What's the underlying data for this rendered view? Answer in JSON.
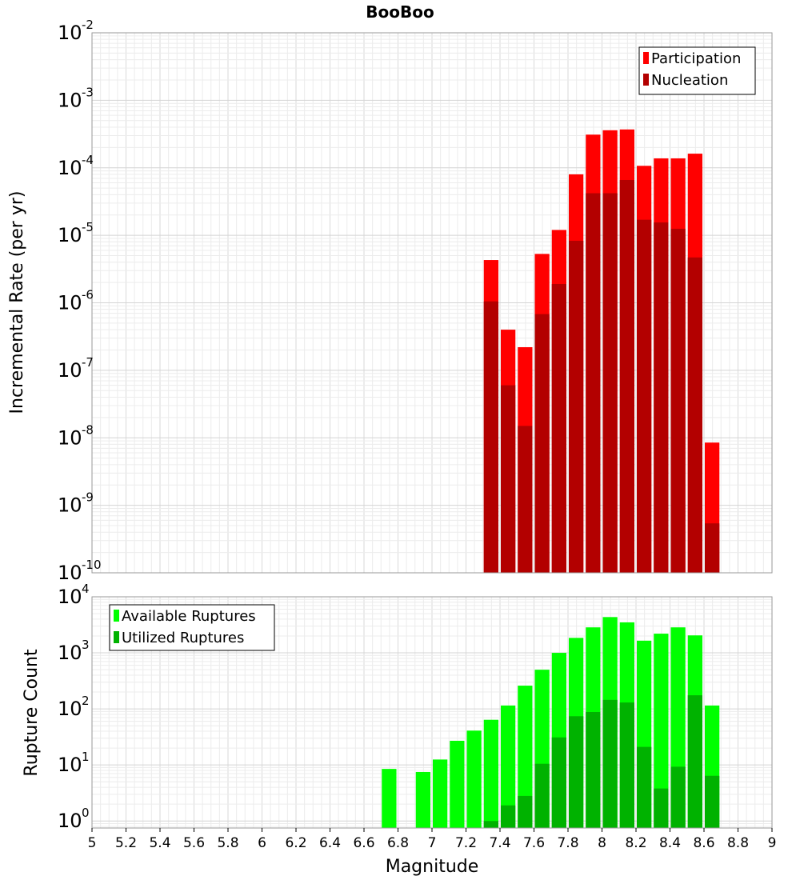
{
  "chart_data": [
    {
      "type": "bar",
      "title": "BooBoo",
      "xlabel": "",
      "ylabel": "Incremental Rate (per yr)",
      "xlim": [
        5,
        9
      ],
      "ylim": [
        1e-10,
        0.01
      ],
      "yscale": "log",
      "grid": true,
      "legend_position": "top-right",
      "x": [
        7.3,
        7.4,
        7.5,
        7.6,
        7.7,
        7.8,
        7.9,
        8.0,
        8.1,
        8.2,
        8.3,
        8.4,
        8.5,
        8.6
      ],
      "series": [
        {
          "name": "Participation",
          "color": "#ff0000",
          "values": [
            4.3e-06,
            4e-07,
            2.2e-07,
            5.3e-06,
            1.2e-05,
            8e-05,
            0.00031,
            0.00036,
            0.00037,
            0.000107,
            0.000138,
            0.000138,
            0.000162,
            8.5e-09
          ]
        },
        {
          "name": "Nucleation",
          "color": "#b30000",
          "values": [
            1.05e-06,
            6e-08,
            1.5e-08,
            6.8e-07,
            1.9e-06,
            8.3e-06,
            4.2e-05,
            4.2e-05,
            6.6e-05,
            1.7e-05,
            1.55e-05,
            1.25e-05,
            4.7e-06,
            5.4e-10
          ]
        }
      ]
    },
    {
      "type": "bar",
      "title": "",
      "xlabel": "Magnitude",
      "ylabel": "Rupture Count",
      "xlim": [
        5,
        9
      ],
      "ylim": [
        0.75,
        10000
      ],
      "yscale": "log",
      "grid": true,
      "legend_position": "top-left",
      "x": [
        6.7,
        6.8,
        6.9,
        7.0,
        7.1,
        7.2,
        7.3,
        7.4,
        7.5,
        7.6,
        7.7,
        7.8,
        7.9,
        8.0,
        8.1,
        8.2,
        8.3,
        8.4,
        8.5,
        8.6
      ],
      "series": [
        {
          "name": "Available Ruptures",
          "color": "#00ff00",
          "values": [
            8.5,
            0,
            7.5,
            12.5,
            27,
            41,
            64,
            115,
            260,
            500,
            1000,
            1850,
            2850,
            4350,
            3500,
            1650,
            2200,
            2850,
            2050,
            115
          ]
        },
        {
          "name": "Utilized Ruptures",
          "color": "#00b200",
          "values": [
            0,
            0,
            0,
            0,
            0,
            0,
            1,
            1.9,
            2.8,
            10.5,
            31,
            74,
            88,
            145,
            130,
            21,
            3.8,
            9.3,
            175,
            6.4
          ]
        }
      ],
      "x_ticks": [
        "5",
        "5.2",
        "5.4",
        "5.6",
        "5.8",
        "6",
        "6.2",
        "6.4",
        "6.6",
        "6.8",
        "7",
        "7.2",
        "7.4",
        "7.6",
        "7.8",
        "8",
        "8.2",
        "8.4",
        "8.6",
        "8.8",
        "9"
      ]
    }
  ]
}
